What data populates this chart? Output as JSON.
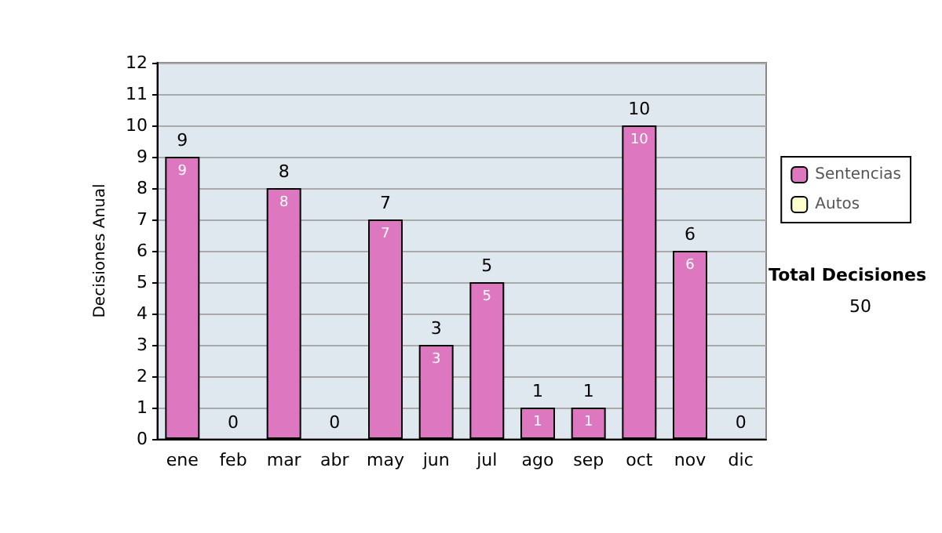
{
  "chart_data": {
    "type": "bar",
    "stacked": true,
    "ylabel": "Decisiones Anual",
    "categories": [
      "ene",
      "feb",
      "mar",
      "abr",
      "may",
      "jun",
      "jul",
      "ago",
      "sep",
      "oct",
      "nov",
      "dic"
    ],
    "series": [
      {
        "name": "Sentencias",
        "color": "#dd77c0",
        "values": [
          9,
          0,
          8,
          0,
          7,
          3,
          5,
          1,
          1,
          10,
          6,
          0
        ],
        "value_labels": [
          "9",
          null,
          "8",
          null,
          "7",
          "3",
          "5",
          "1",
          "1",
          "10",
          "6",
          null
        ]
      },
      {
        "name": "Autos",
        "color": "#ffffcc",
        "values": [
          0,
          0,
          0,
          0,
          0,
          0,
          0,
          0,
          0,
          0,
          0,
          0
        ]
      }
    ],
    "totals": [
      "9",
      "0",
      "8",
      "0",
      "7",
      "3",
      "5",
      "1",
      "1",
      "10",
      "6",
      "0"
    ],
    "ylim": [
      0,
      12
    ],
    "yticks": [
      0,
      1,
      2,
      3,
      4,
      5,
      6,
      7,
      8,
      9,
      10,
      11,
      12
    ],
    "grid": "y",
    "legend": "right",
    "annotations": [
      "Total Decisiones",
      "50"
    ]
  }
}
